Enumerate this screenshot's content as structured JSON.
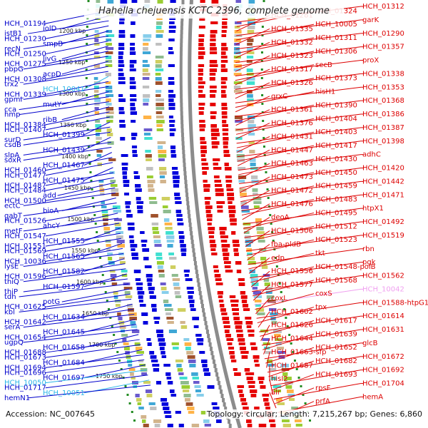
{
  "title": "Hahella chejuensis KCTC 2396, complete genome",
  "footer": {
    "accession": "Accession: NC_007645",
    "topology": "Topology: circular; Length: 7,215,267 bp; Genes: 6,860"
  },
  "colors": {
    "left_labels": "#0000cc",
    "right_labels": "#dd0000",
    "special_left": "#29b6e8",
    "special_right": "#f0a0f0",
    "backbone": "#8c8c8c",
    "forward_genes": "#e60000",
    "reverse_genes": "#0000dd",
    "dotted_rings": "#228b22"
  },
  "kbp_ticks": [
    "1200 kbp",
    "1250 kbp",
    "1300 kbp",
    "1350 kbp",
    "1400 kbp",
    "1450 kbp",
    "1500 kbp",
    "1550 kbp",
    "1600 kbp",
    "1650 kbp",
    "1700 kbp",
    "1750 kbp"
  ],
  "left_labels": [
    {
      "text": "HCH_01194"
    },
    {
      "text": "iolD"
    },
    {
      "text": "istB1"
    },
    {
      "text": "HCH_01230"
    },
    {
      "text": "smpB"
    },
    {
      "text": "recN"
    },
    {
      "text": "HCH_01250"
    },
    {
      "text": "livG"
    },
    {
      "text": "HCH_01275"
    },
    {
      "text": "pbpG"
    },
    {
      "text": "acpD"
    },
    {
      "text": "HCH_01308"
    },
    {
      "text": "trx2"
    },
    {
      "text": "HCH_10041",
      "special": true
    },
    {
      "text": "HCH_01339"
    },
    {
      "text": "gpmI"
    },
    {
      "text": "mutY"
    },
    {
      "text": "cca"
    },
    {
      "text": "hmp"
    },
    {
      "text": "ribB"
    },
    {
      "text": "HCH_01384"
    },
    {
      "text": "HCH_01407"
    },
    {
      "text": "HCH_01399"
    },
    {
      "text": "surD"
    },
    {
      "text": "csdB"
    },
    {
      "text": "HCH_01439"
    },
    {
      "text": "slpA"
    },
    {
      "text": "soxR"
    },
    {
      "text": "HCH_01467"
    },
    {
      "text": "HCH_01460"
    },
    {
      "text": "HCH_01477"
    },
    {
      "text": "HCH_01475"
    },
    {
      "text": "HCH_01487"
    },
    {
      "text": "HCH_01484"
    },
    {
      "text": "add"
    },
    {
      "text": "HCH_01500"
    },
    {
      "text": "ectC"
    },
    {
      "text": "bioA"
    },
    {
      "text": "gabT"
    },
    {
      "text": "HCH_01526"
    },
    {
      "text": "ahcY"
    },
    {
      "text": "metF"
    },
    {
      "text": "HCH_01547"
    },
    {
      "text": "HCH_01555"
    },
    {
      "text": "HCH_01551"
    },
    {
      "text": "HCH_01569"
    },
    {
      "text": "HCH_01565"
    },
    {
      "text": "HCH_10036"
    },
    {
      "text": "lysE"
    },
    {
      "text": "HCH_01582"
    },
    {
      "text": "HCH_01596"
    },
    {
      "text": "thiQ"
    },
    {
      "text": "HCH_01597"
    },
    {
      "text": "thiP"
    },
    {
      "text": "tdh"
    },
    {
      "text": "potG"
    },
    {
      "text": "HCH_01625"
    },
    {
      "text": "kbl"
    },
    {
      "text": "HCH_01634"
    },
    {
      "text": "HCH_01642"
    },
    {
      "text": "serA"
    },
    {
      "text": "HCH_01645"
    },
    {
      "text": "HCH_01654"
    },
    {
      "text": "ugpQ"
    },
    {
      "text": "HCH_01658"
    },
    {
      "text": "HCH_01688"
    },
    {
      "text": "HCH_01673"
    },
    {
      "text": "HCH_01684"
    },
    {
      "text": "HCH_01694"
    },
    {
      "text": "HCH_01696"
    },
    {
      "text": "HCH_01697"
    },
    {
      "text": "HCH_10050",
      "special": true
    },
    {
      "text": "HCH_01717"
    },
    {
      "text": "HCH_10051",
      "special": true
    },
    {
      "text": "hemN1"
    }
  ],
  "right_labels": [
    {
      "text": "HCH_01312"
    },
    {
      "text": "HCH_01324"
    },
    {
      "text": "HCH_01281"
    },
    {
      "text": "garK"
    },
    {
      "text": "HCH_10005"
    },
    {
      "text": "HCH_01335"
    },
    {
      "text": "HCH_01290"
    },
    {
      "text": "HCH_01311"
    },
    {
      "text": "HCH_01332"
    },
    {
      "text": "HCH_01357"
    },
    {
      "text": "HCH_01306"
    },
    {
      "text": "HCH_01323"
    },
    {
      "text": "proX"
    },
    {
      "text": "secB"
    },
    {
      "text": "HCH_01317"
    },
    {
      "text": "HCH_01338"
    },
    {
      "text": "HCH_01373"
    },
    {
      "text": "HCH_01326"
    },
    {
      "text": "HCH_01353"
    },
    {
      "text": "hisH1"
    },
    {
      "text": "grxC"
    },
    {
      "text": "HCH_01368"
    },
    {
      "text": "HCH_01390"
    },
    {
      "text": "HCH_01361"
    },
    {
      "text": "HCH_01386"
    },
    {
      "text": "HCH_01404"
    },
    {
      "text": "HCH_01376"
    },
    {
      "text": "HCH_01387"
    },
    {
      "text": "HCH_01403"
    },
    {
      "text": "HCH_01431"
    },
    {
      "text": "HCH_01398"
    },
    {
      "text": "HCH_01417"
    },
    {
      "text": "HCH_01447"
    },
    {
      "text": "adhC"
    },
    {
      "text": "HCH_01430"
    },
    {
      "text": "HCH_01463"
    },
    {
      "text": "HCH_01420"
    },
    {
      "text": "HCH_01450"
    },
    {
      "text": "HCH_01473"
    },
    {
      "text": "HCH_01442"
    },
    {
      "text": "HCH_01459"
    },
    {
      "text": "HCH_01472"
    },
    {
      "text": "HCH_01471"
    },
    {
      "text": "HCH_01483"
    },
    {
      "text": "HCH_01476"
    },
    {
      "text": "htpX1"
    },
    {
      "text": "HCH_01495"
    },
    {
      "text": "deoA"
    },
    {
      "text": "HCH_01492"
    },
    {
      "text": "HCH_01512"
    },
    {
      "text": "HCH_01506"
    },
    {
      "text": "HCH_01519"
    },
    {
      "text": "HCH_01523"
    },
    {
      "text": "fba-pldB"
    },
    {
      "text": "rbn"
    },
    {
      "text": "tkt"
    },
    {
      "text": "edp"
    },
    {
      "text": "pgk"
    },
    {
      "text": "HCH_01548-polB"
    },
    {
      "text": "HCH_01556"
    },
    {
      "text": "HCH_01562"
    },
    {
      "text": "HCH_01568"
    },
    {
      "text": "HCH_01577"
    },
    {
      "text": "HCH_10042",
      "special": true
    },
    {
      "text": "coxS"
    },
    {
      "text": "coxL"
    },
    {
      "text": "HCH_01588-htpG1"
    },
    {
      "text": "tpx"
    },
    {
      "text": "HCH_01602"
    },
    {
      "text": "HCH_01614"
    },
    {
      "text": "HCH_01617"
    },
    {
      "text": "HCH_01626"
    },
    {
      "text": "HCH_01631"
    },
    {
      "text": "HCH_01639"
    },
    {
      "text": "HCH_01644"
    },
    {
      "text": "glcB"
    },
    {
      "text": "HCH_01652"
    },
    {
      "text": "HCH_01663-sfp"
    },
    {
      "text": "HCH_01672"
    },
    {
      "text": "HCH_01682"
    },
    {
      "text": "HCH_01687"
    },
    {
      "text": "HCH_01692"
    },
    {
      "text": "HCH_01693"
    },
    {
      "text": "hisI2"
    },
    {
      "text": "HCH_01704"
    },
    {
      "text": "rpsF"
    },
    {
      "text": "alr"
    },
    {
      "text": "hemA"
    },
    {
      "text": "prfA"
    }
  ]
}
